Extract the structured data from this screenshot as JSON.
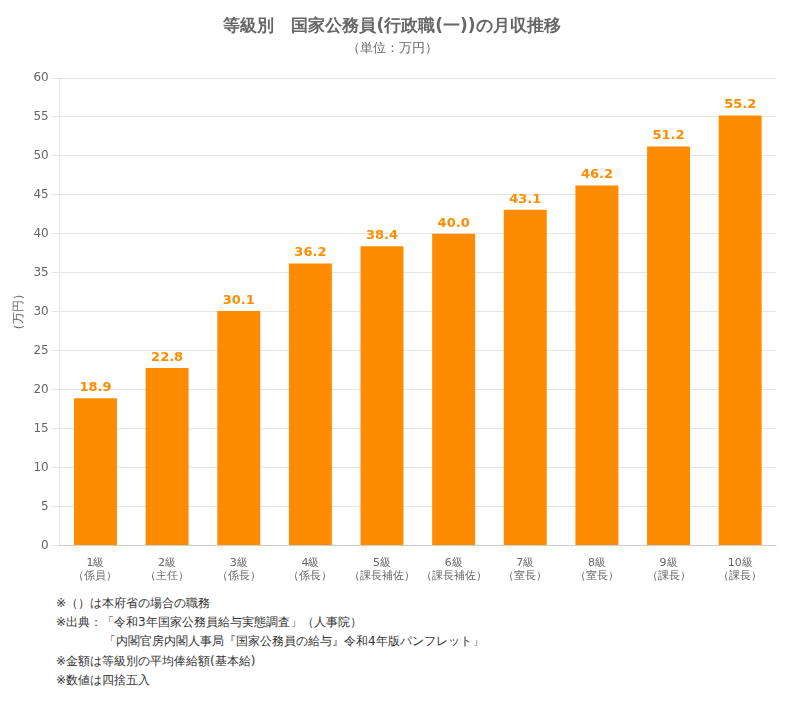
{
  "chart_data": {
    "type": "bar",
    "title": "等級別　国家公務員(行政職(一))の月収推移",
    "subtitle": "（単位：万円）",
    "ylabel": "（万円）",
    "categories": [
      "1級\n（係員）",
      "2級\n（主任）",
      "3級\n（係長）",
      "4級\n（係長）",
      "5級\n（課長補佐）",
      "6級\n（課長補佐）",
      "7級\n（室長）",
      "8級\n（室長）",
      "9級\n（課長）",
      "10級\n（課長）"
    ],
    "values": [
      18.9,
      22.8,
      30.1,
      36.2,
      38.4,
      40.0,
      43.1,
      46.2,
      51.2,
      55.2
    ],
    "value_labels": [
      "18.9",
      "22.8",
      "30.1",
      "36.2",
      "38.4",
      "40.0",
      "43.1",
      "46.2",
      "51.2",
      "55.2"
    ],
    "data_labels": true,
    "color": "#FF8C00",
    "ylim": [
      0,
      60
    ],
    "yticks": [
      0,
      5,
      10,
      15,
      20,
      25,
      30,
      35,
      40,
      45,
      50,
      55,
      60
    ],
    "grid": true,
    "annotations": [
      "※（）は本府省の場合の職務",
      "※出典：「令和3年国家公務員給与実態調査」（人事院）",
      "　　　　「内閣官房内閣人事局『国家公務員の給与』令和4年版パンフレット」",
      "※金額は等級別の平均俸給額(基本給)",
      "※数値は四捨五入"
    ]
  }
}
